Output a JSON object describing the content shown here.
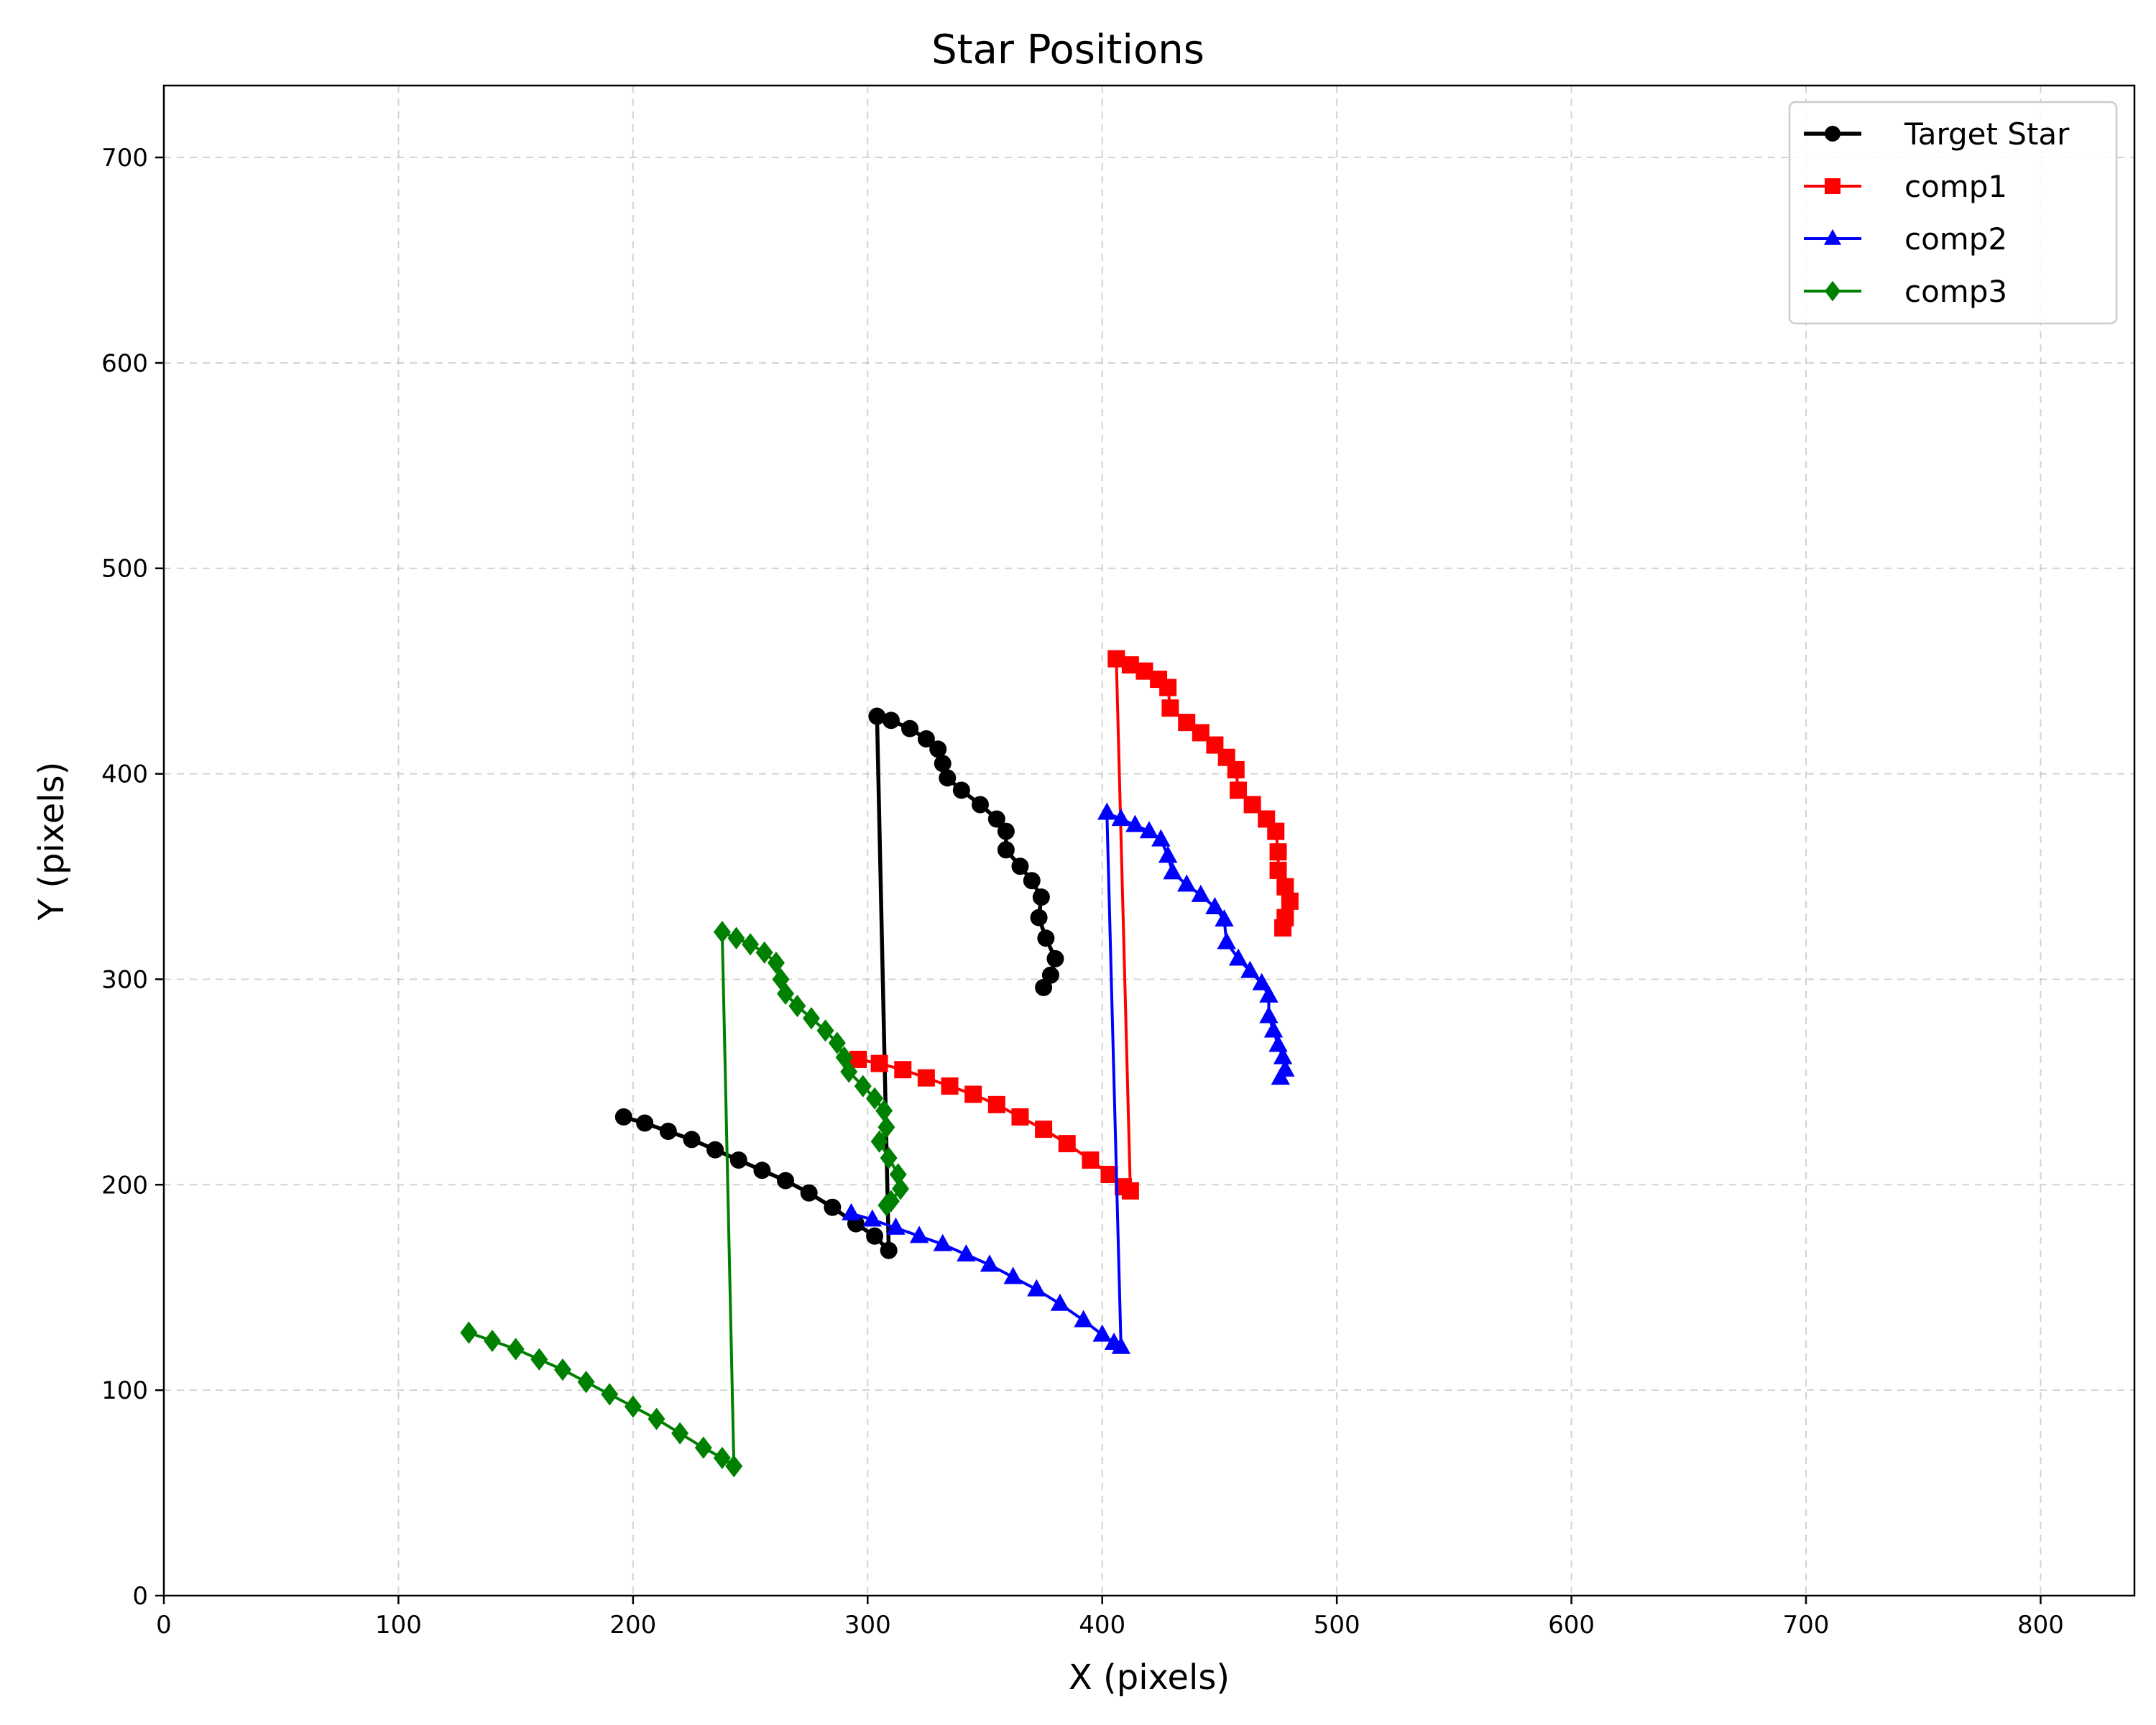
{
  "chart_data": {
    "type": "line",
    "title": "Star Positions",
    "xlabel": "X (pixels)",
    "ylabel": "Y (pixels)",
    "xlim": [
      0,
      840
    ],
    "ylim": [
      0,
      735
    ],
    "x_ticks": [
      0,
      100,
      200,
      300,
      400,
      500,
      600,
      700,
      800
    ],
    "y_ticks": [
      0,
      100,
      200,
      300,
      400,
      500,
      600,
      700
    ],
    "grid": true,
    "legend_position": "top-right",
    "series": [
      {
        "name": "Target Star",
        "color": "#000000",
        "marker": "circle",
        "points": [
          [
            196,
            233
          ],
          [
            205,
            230
          ],
          [
            215,
            226
          ],
          [
            225,
            222
          ],
          [
            235,
            217
          ],
          [
            245,
            212
          ],
          [
            255,
            207
          ],
          [
            265,
            202
          ],
          [
            275,
            196
          ],
          [
            285,
            189
          ],
          [
            295,
            181
          ],
          [
            303,
            175
          ],
          [
            309,
            168
          ],
          [
            304,
            428
          ],
          [
            310,
            426
          ],
          [
            318,
            422
          ],
          [
            325,
            417
          ],
          [
            330,
            412
          ],
          [
            332,
            405
          ],
          [
            334,
            398
          ],
          [
            340,
            392
          ],
          [
            348,
            385
          ],
          [
            355,
            378
          ],
          [
            359,
            372
          ],
          [
            359,
            363
          ],
          [
            365,
            355
          ],
          [
            370,
            348
          ],
          [
            374,
            340
          ],
          [
            373,
            330
          ],
          [
            376,
            320
          ],
          [
            380,
            310
          ],
          [
            378,
            302
          ],
          [
            375,
            296
          ]
        ]
      },
      {
        "name": "comp1",
        "color": "#ff0000",
        "marker": "square",
        "points": [
          [
            296,
            261
          ],
          [
            305,
            259
          ],
          [
            315,
            256
          ],
          [
            325,
            252
          ],
          [
            335,
            248
          ],
          [
            345,
            244
          ],
          [
            355,
            239
          ],
          [
            365,
            233
          ],
          [
            375,
            227
          ],
          [
            385,
            220
          ],
          [
            395,
            212
          ],
          [
            403,
            205
          ],
          [
            409,
            199
          ],
          [
            412,
            197
          ],
          [
            406,
            456
          ],
          [
            412,
            453
          ],
          [
            418,
            450
          ],
          [
            424,
            446
          ],
          [
            428,
            442
          ],
          [
            429,
            432
          ],
          [
            436,
            425
          ],
          [
            442,
            420
          ],
          [
            448,
            414
          ],
          [
            453,
            408
          ],
          [
            457,
            402
          ],
          [
            458,
            392
          ],
          [
            464,
            385
          ],
          [
            470,
            378
          ],
          [
            474,
            372
          ],
          [
            475,
            362
          ],
          [
            475,
            353
          ],
          [
            478,
            345
          ],
          [
            480,
            338
          ],
          [
            478,
            330
          ],
          [
            477,
            325
          ]
        ]
      },
      {
        "name": "comp2",
        "color": "#0000ff",
        "marker": "triangle",
        "points": [
          [
            293,
            186
          ],
          [
            302,
            183
          ],
          [
            312,
            179
          ],
          [
            322,
            175
          ],
          [
            332,
            171
          ],
          [
            342,
            166
          ],
          [
            352,
            161
          ],
          [
            362,
            155
          ],
          [
            372,
            149
          ],
          [
            382,
            142
          ],
          [
            392,
            134
          ],
          [
            400,
            127
          ],
          [
            405,
            123
          ],
          [
            408,
            121
          ],
          [
            402,
            381
          ],
          [
            408,
            378
          ],
          [
            414,
            375
          ],
          [
            420,
            372
          ],
          [
            425,
            368
          ],
          [
            428,
            360
          ],
          [
            430,
            352
          ],
          [
            436,
            346
          ],
          [
            442,
            341
          ],
          [
            448,
            335
          ],
          [
            452,
            329
          ],
          [
            453,
            318
          ],
          [
            458,
            310
          ],
          [
            463,
            304
          ],
          [
            468,
            298
          ],
          [
            471,
            292
          ],
          [
            471,
            282
          ],
          [
            473,
            275
          ],
          [
            475,
            268
          ],
          [
            477,
            262
          ],
          [
            478,
            256
          ],
          [
            476,
            252
          ]
        ]
      },
      {
        "name": "comp3",
        "color": "#008000",
        "marker": "diamond",
        "points": [
          [
            130,
            128
          ],
          [
            140,
            124
          ],
          [
            150,
            120
          ],
          [
            160,
            115
          ],
          [
            170,
            110
          ],
          [
            180,
            104
          ],
          [
            190,
            98
          ],
          [
            200,
            92
          ],
          [
            210,
            86
          ],
          [
            220,
            79
          ],
          [
            230,
            72
          ],
          [
            238,
            67
          ],
          [
            243,
            63
          ],
          [
            238,
            323
          ],
          [
            244,
            320
          ],
          [
            250,
            317
          ],
          [
            256,
            313
          ],
          [
            261,
            308
          ],
          [
            263,
            300
          ],
          [
            265,
            293
          ],
          [
            270,
            287
          ],
          [
            276,
            281
          ],
          [
            282,
            275
          ],
          [
            287,
            269
          ],
          [
            290,
            262
          ],
          [
            292,
            255
          ],
          [
            298,
            248
          ],
          [
            303,
            242
          ],
          [
            307,
            236
          ],
          [
            308,
            228
          ],
          [
            305,
            221
          ],
          [
            309,
            213
          ],
          [
            313,
            205
          ],
          [
            314,
            198
          ],
          [
            310,
            192
          ],
          [
            308,
            190
          ]
        ]
      }
    ]
  }
}
